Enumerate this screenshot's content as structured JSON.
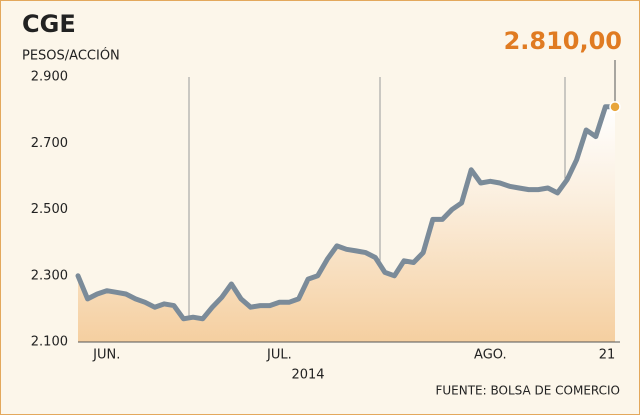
{
  "chart_data": {
    "type": "line",
    "title": "CGE",
    "y_label": "PESOS/ACCIÓN",
    "x_label": "2014",
    "source": "FUENTE: BOLSA DE COMERCIO",
    "annotation": "2.810,00",
    "categories": [
      null,
      null,
      null,
      "JUN.",
      null,
      null,
      null,
      null,
      null,
      null,
      null,
      null,
      null,
      null,
      null,
      null,
      null,
      null,
      null,
      null,
      null,
      "JUL.",
      null,
      null,
      null,
      null,
      null,
      null,
      null,
      null,
      null,
      null,
      null,
      null,
      null,
      null,
      null,
      null,
      null,
      null,
      null,
      null,
      null,
      "AGO.",
      null,
      null,
      null,
      null,
      null,
      null,
      null,
      null,
      null,
      null,
      null,
      null,
      "21"
    ],
    "values": [
      2300,
      2230,
      2245,
      2255,
      2250,
      2245,
      2230,
      2220,
      2205,
      2215,
      2210,
      2170,
      2175,
      2170,
      2205,
      2235,
      2275,
      2230,
      2205,
      2210,
      2210,
      2220,
      2220,
      2230,
      2290,
      2300,
      2350,
      2390,
      2380,
      2375,
      2370,
      2355,
      2310,
      2300,
      2345,
      2340,
      2370,
      2470,
      2470,
      2500,
      2520,
      2620,
      2580,
      2585,
      2580,
      2570,
      2565,
      2560,
      2560,
      2565,
      2550,
      2590,
      2650,
      2740,
      2720,
      2810,
      2810
    ],
    "color": "#7b8b99",
    "marker_color": "#e8a53a",
    "annotation_color": "#e07b22",
    "ylim": [
      2100,
      2900
    ],
    "yticks": [
      {
        "value": 2100,
        "label": "2.100"
      },
      {
        "value": 2300,
        "label": "2.300"
      },
      {
        "value": 2500,
        "label": "2.500"
      },
      {
        "value": 2700,
        "label": "2.700"
      },
      {
        "value": 2900,
        "label": "2.900"
      }
    ],
    "grid": false
  }
}
